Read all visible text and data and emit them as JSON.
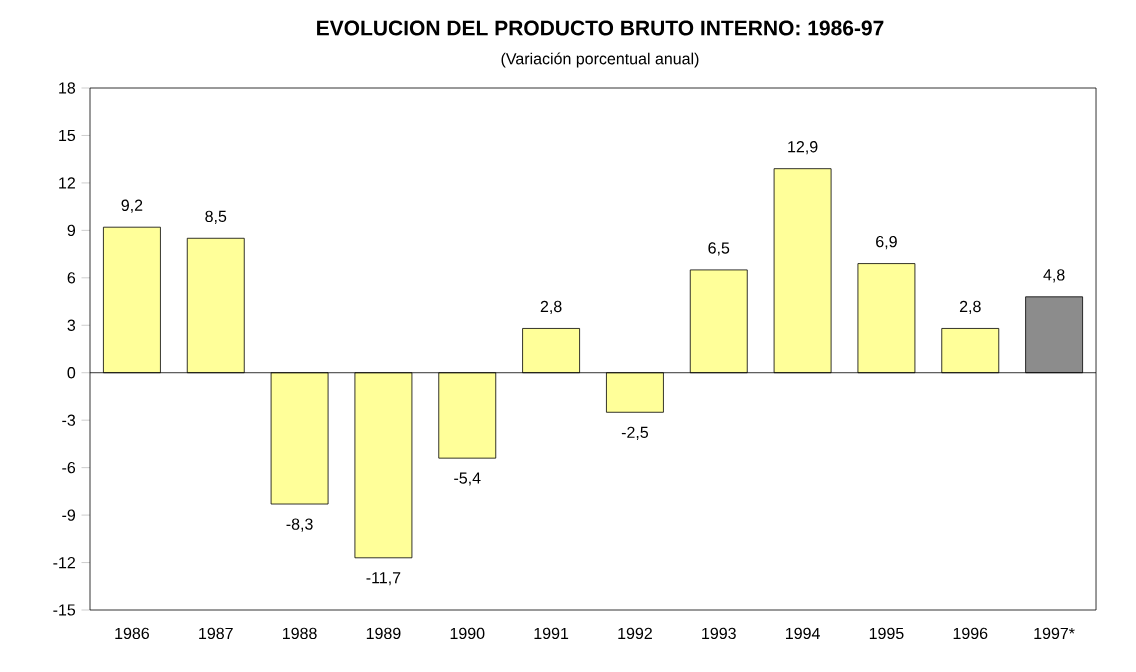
{
  "chart_data": {
    "type": "bar",
    "title": "EVOLUCION DEL PRODUCTO BRUTO INTERNO: 1986-97",
    "subtitle": "(Variación porcentual anual)",
    "categories": [
      "1986",
      "1987",
      "1988",
      "1989",
      "1990",
      "1991",
      "1992",
      "1993",
      "1994",
      "1995",
      "1996",
      "1997*"
    ],
    "values": [
      9.2,
      8.5,
      -8.3,
      -11.7,
      -5.4,
      2.8,
      -2.5,
      6.5,
      12.9,
      6.9,
      2.8,
      4.8
    ],
    "value_labels": [
      "9,2",
      "8,5",
      "-8,3",
      "-11,7",
      "-5,4",
      "2,8",
      "-2,5",
      "6,5",
      "12,9",
      "6,9",
      "2,8",
      "4,8"
    ],
    "colors": [
      "#ffff99",
      "#ffff99",
      "#ffff99",
      "#ffff99",
      "#ffff99",
      "#ffff99",
      "#ffff99",
      "#ffff99",
      "#ffff99",
      "#ffff99",
      "#ffff99",
      "#8c8c8c"
    ],
    "ylim": [
      -15,
      18
    ],
    "yticks": [
      -15,
      -12,
      -9,
      -6,
      -3,
      0,
      3,
      6,
      9,
      12,
      15,
      18
    ]
  }
}
